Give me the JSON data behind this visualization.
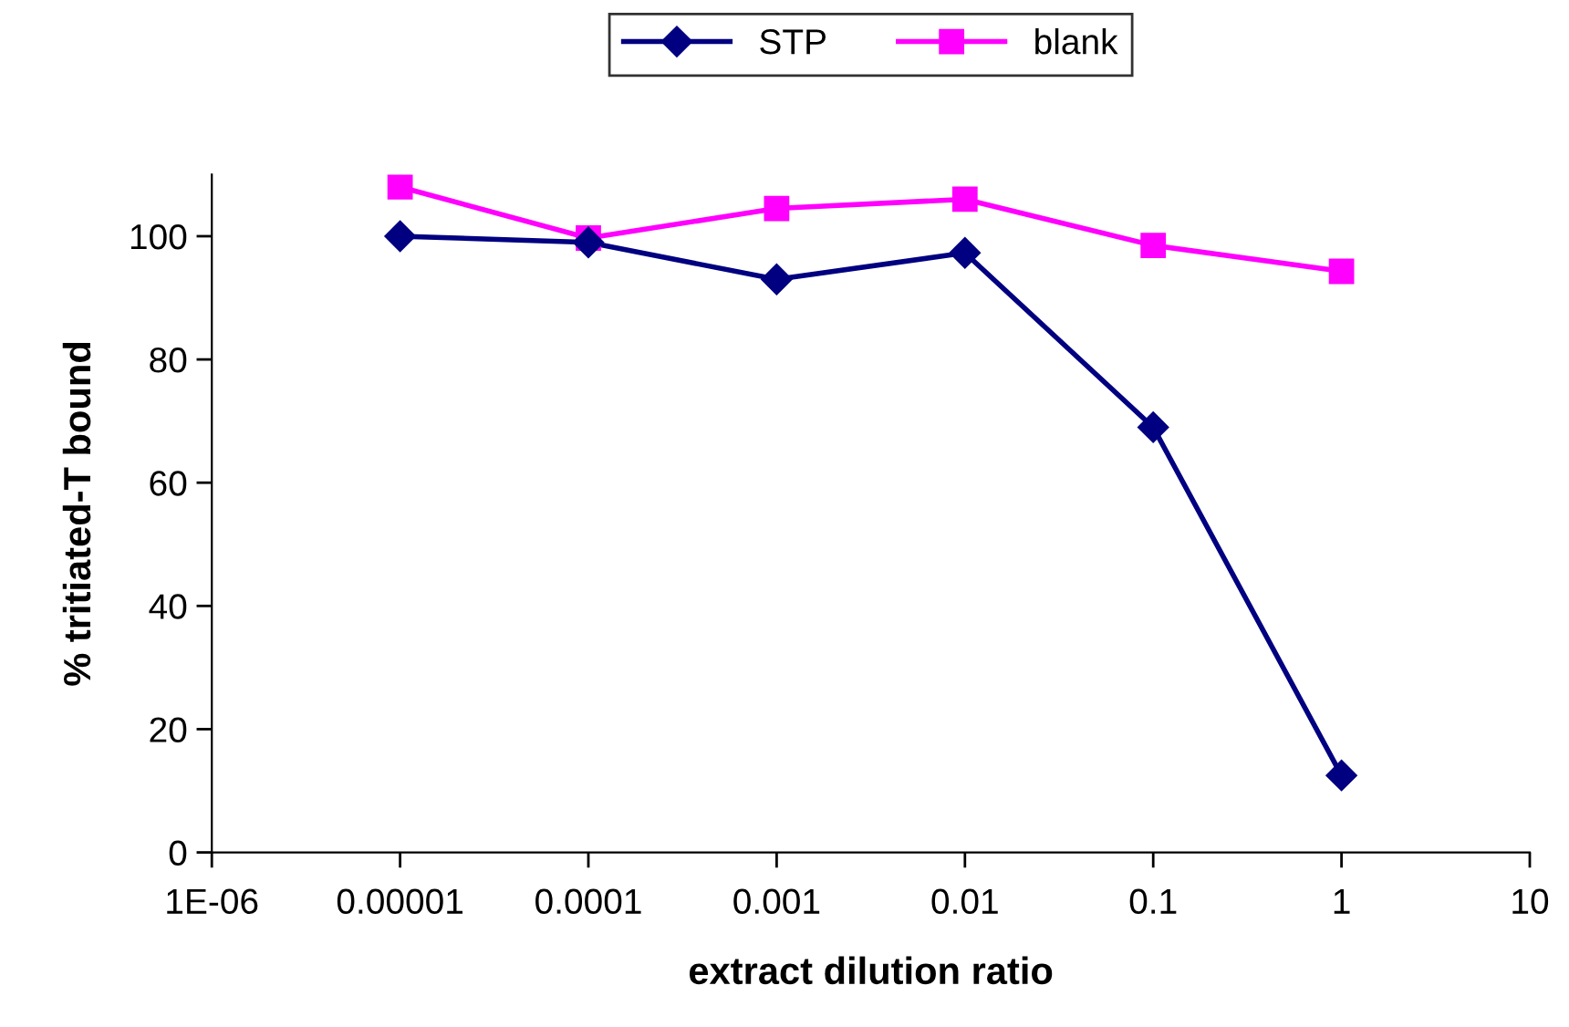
{
  "chart_data": {
    "type": "line",
    "xlabel": "extract dilution ratio",
    "ylabel": "% tritiated-T bound",
    "x": [
      1e-05,
      0.0001,
      0.001,
      0.01,
      0.1,
      1
    ],
    "series": [
      {
        "name": "STP",
        "color": "#000080",
        "marker": "diamond",
        "values": [
          100,
          99,
          93,
          97.3,
          69,
          12.5
        ]
      },
      {
        "name": "blank",
        "color": "#ff00ff",
        "marker": "square",
        "values": [
          108,
          99.7,
          104.5,
          106,
          98.5,
          94.3
        ]
      }
    ],
    "log": "x",
    "xlim": [
      1e-06,
      10
    ],
    "xticks": [
      {
        "value": 1e-06,
        "label": "1E-06"
      },
      {
        "value": 1e-05,
        "label": "0.00001"
      },
      {
        "value": 0.0001,
        "label": "0.0001"
      },
      {
        "value": 0.001,
        "label": "0.001"
      },
      {
        "value": 0.01,
        "label": "0.01"
      },
      {
        "value": 0.1,
        "label": "0.1"
      },
      {
        "value": 1,
        "label": "1"
      },
      {
        "value": 10,
        "label": "10"
      }
    ],
    "ylim": [
      0,
      110
    ],
    "yticks": [
      0,
      20,
      40,
      60,
      80,
      100
    ],
    "grid": false,
    "legend": "top",
    "line_style": "solid"
  }
}
